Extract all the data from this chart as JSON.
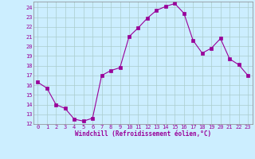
{
  "x": [
    0,
    1,
    2,
    3,
    4,
    5,
    6,
    7,
    8,
    9,
    10,
    11,
    12,
    13,
    14,
    15,
    16,
    17,
    18,
    19,
    20,
    21,
    22,
    23
  ],
  "y": [
    16.3,
    15.7,
    14.0,
    13.6,
    12.5,
    12.3,
    12.6,
    17.0,
    17.5,
    17.8,
    21.0,
    21.9,
    22.9,
    23.7,
    24.1,
    24.4,
    23.4,
    20.6,
    19.3,
    19.8,
    20.8,
    18.7,
    18.1,
    17.0
  ],
  "line_color": "#990099",
  "marker": "s",
  "marker_size": 2.2,
  "bg_color": "#cceeff",
  "grid_color": "#aacccc",
  "xlabel": "Windchill (Refroidissement éolien,°C)",
  "xlabel_color": "#990099",
  "tick_color": "#990099",
  "ylim": [
    12,
    24.6
  ],
  "xlim": [
    -0.5,
    23.5
  ],
  "yticks": [
    12,
    13,
    14,
    15,
    16,
    17,
    18,
    19,
    20,
    21,
    22,
    23,
    24
  ],
  "xticks": [
    0,
    1,
    2,
    3,
    4,
    5,
    6,
    7,
    8,
    9,
    10,
    11,
    12,
    13,
    14,
    15,
    16,
    17,
    18,
    19,
    20,
    21,
    22,
    23
  ],
  "tick_fontsize": 5.0,
  "xlabel_fontsize": 5.5,
  "spine_color": "#888888"
}
